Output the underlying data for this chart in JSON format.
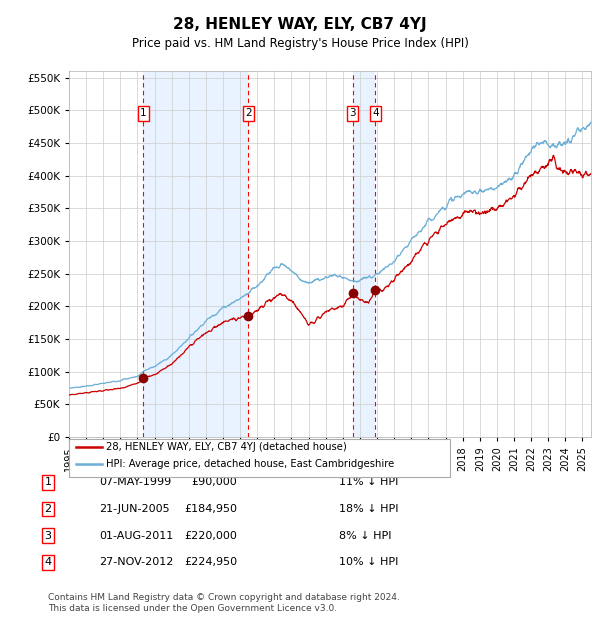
{
  "title": "28, HENLEY WAY, ELY, CB7 4YJ",
  "subtitle": "Price paid vs. HM Land Registry's House Price Index (HPI)",
  "hpi_color": "#6baed6",
  "price_color": "#cc0000",
  "marker_color": "#8b0000",
  "background_color": "#ffffff",
  "chart_bg": "#ffffff",
  "grid_color": "#cccccc",
  "shade_color": "#ddeeff",
  "ylim": [
    0,
    560000
  ],
  "yticks": [
    0,
    50000,
    100000,
    150000,
    200000,
    250000,
    300000,
    350000,
    400000,
    450000,
    500000,
    550000
  ],
  "transactions": [
    {
      "date_num": 1999.35,
      "price": 90000,
      "label": "1",
      "hpi_pct": 11
    },
    {
      "date_num": 2005.47,
      "price": 184950,
      "label": "2",
      "hpi_pct": 18
    },
    {
      "date_num": 2011.58,
      "price": 220000,
      "label": "3",
      "hpi_pct": 8
    },
    {
      "date_num": 2012.9,
      "price": 224950,
      "label": "4",
      "hpi_pct": 10
    }
  ],
  "legend_entries": [
    {
      "label": "28, HENLEY WAY, ELY, CB7 4YJ (detached house)",
      "color": "#cc0000"
    },
    {
      "label": "HPI: Average price, detached house, East Cambridgeshire",
      "color": "#6baed6"
    }
  ],
  "table_rows": [
    {
      "num": "1",
      "date": "07-MAY-1999",
      "price": "£90,000",
      "pct": "11% ↓ HPI"
    },
    {
      "num": "2",
      "date": "21-JUN-2005",
      "price": "£184,950",
      "pct": "18% ↓ HPI"
    },
    {
      "num": "3",
      "date": "01-AUG-2011",
      "price": "£220,000",
      "pct": "8% ↓ HPI"
    },
    {
      "num": "4",
      "date": "27-NOV-2012",
      "price": "£224,950",
      "pct": "10% ↓ HPI"
    }
  ],
  "footer": "Contains HM Land Registry data © Crown copyright and database right 2024.\nThis data is licensed under the Open Government Licence v3.0.",
  "xmin": 1995.0,
  "xmax": 2025.5,
  "hpi_anchors": [
    [
      1995.0,
      75000
    ],
    [
      1996.0,
      78000
    ],
    [
      1997.0,
      82000
    ],
    [
      1998.0,
      87000
    ],
    [
      1999.0,
      93000
    ],
    [
      1999.35,
      101000
    ],
    [
      2000.0,
      108000
    ],
    [
      2001.0,
      125000
    ],
    [
      2002.0,
      152000
    ],
    [
      2003.0,
      178000
    ],
    [
      2004.0,
      198000
    ],
    [
      2005.0,
      212000
    ],
    [
      2005.47,
      222000
    ],
    [
      2006.0,
      232000
    ],
    [
      2007.0,
      258000
    ],
    [
      2007.5,
      264000
    ],
    [
      2008.0,
      255000
    ],
    [
      2008.5,
      242000
    ],
    [
      2009.0,
      237000
    ],
    [
      2009.5,
      240000
    ],
    [
      2010.0,
      245000
    ],
    [
      2010.5,
      248000
    ],
    [
      2011.0,
      245000
    ],
    [
      2011.58,
      239000
    ],
    [
      2012.0,
      240000
    ],
    [
      2012.9,
      248000
    ],
    [
      2013.0,
      250000
    ],
    [
      2014.0,
      268000
    ],
    [
      2015.0,
      300000
    ],
    [
      2016.0,
      330000
    ],
    [
      2017.0,
      355000
    ],
    [
      2017.5,
      365000
    ],
    [
      2018.0,
      370000
    ],
    [
      2018.5,
      378000
    ],
    [
      2019.0,
      375000
    ],
    [
      2019.5,
      380000
    ],
    [
      2020.0,
      380000
    ],
    [
      2020.5,
      390000
    ],
    [
      2021.0,
      400000
    ],
    [
      2021.5,
      420000
    ],
    [
      2022.0,
      440000
    ],
    [
      2022.5,
      450000
    ],
    [
      2022.8,
      455000
    ],
    [
      2023.0,
      450000
    ],
    [
      2023.5,
      445000
    ],
    [
      2024.0,
      448000
    ],
    [
      2024.5,
      460000
    ],
    [
      2025.0,
      472000
    ],
    [
      2025.5,
      478000
    ]
  ],
  "price_anchors": [
    [
      1995.0,
      65000
    ],
    [
      1996.0,
      68000
    ],
    [
      1997.0,
      71000
    ],
    [
      1998.0,
      75000
    ],
    [
      1999.0,
      82000
    ],
    [
      1999.35,
      90000
    ],
    [
      2000.0,
      96000
    ],
    [
      2001.0,
      112000
    ],
    [
      2002.0,
      138000
    ],
    [
      2003.0,
      160000
    ],
    [
      2004.0,
      176000
    ],
    [
      2005.0,
      183000
    ],
    [
      2005.47,
      184950
    ],
    [
      2006.0,
      195000
    ],
    [
      2007.0,
      214000
    ],
    [
      2007.5,
      218000
    ],
    [
      2008.0,
      208000
    ],
    [
      2008.5,
      192000
    ],
    [
      2009.0,
      173000
    ],
    [
      2009.5,
      180000
    ],
    [
      2010.0,
      190000
    ],
    [
      2010.5,
      198000
    ],
    [
      2011.0,
      200000
    ],
    [
      2011.58,
      220000
    ],
    [
      2012.0,
      210000
    ],
    [
      2012.5,
      205000
    ],
    [
      2012.9,
      224950
    ],
    [
      2013.0,
      222000
    ],
    [
      2013.5,
      228000
    ],
    [
      2014.0,
      240000
    ],
    [
      2015.0,
      270000
    ],
    [
      2016.0,
      300000
    ],
    [
      2017.0,
      325000
    ],
    [
      2017.5,
      335000
    ],
    [
      2018.0,
      340000
    ],
    [
      2018.5,
      348000
    ],
    [
      2019.0,
      342000
    ],
    [
      2019.5,
      348000
    ],
    [
      2020.0,
      350000
    ],
    [
      2020.5,
      360000
    ],
    [
      2021.0,
      368000
    ],
    [
      2021.5,
      385000
    ],
    [
      2022.0,
      400000
    ],
    [
      2022.5,
      410000
    ],
    [
      2022.8,
      415000
    ],
    [
      2023.0,
      420000
    ],
    [
      2023.3,
      430000
    ],
    [
      2023.5,
      415000
    ],
    [
      2024.0,
      405000
    ],
    [
      2024.5,
      410000
    ],
    [
      2025.0,
      400000
    ],
    [
      2025.5,
      405000
    ]
  ]
}
